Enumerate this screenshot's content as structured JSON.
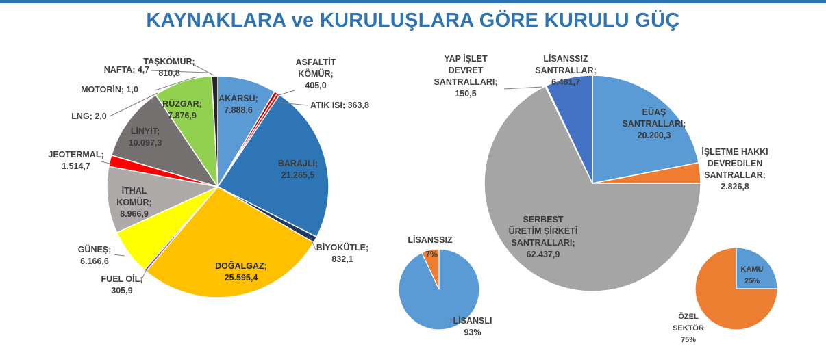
{
  "title": "KAYNAKLARA ve KURULUŞLARA GÖRE KURULU GÜÇ",
  "chart_data": [
    {
      "type": "pie",
      "name": "sources",
      "slices": [
        {
          "label": "AKARSU",
          "value": 7888.6,
          "display": "7.888,6",
          "color": "#5b9bd5"
        },
        {
          "label": "ASFALTİT KÖMÜR",
          "value": 405.0,
          "display": "405,0",
          "color": "#c00000"
        },
        {
          "label": "ATIK ISI",
          "value": 363.8,
          "display": "363,8",
          "color": "#ff0000"
        },
        {
          "label": "BARAJLI",
          "value": 21265.5,
          "display": "21.265,5",
          "color": "#2e75b6"
        },
        {
          "label": "BİYOKÜTLE",
          "value": 832.1,
          "display": "832,1",
          "color": "#1f3864"
        },
        {
          "label": "DOĞALGAZ",
          "value": 25595.4,
          "display": "25.595,4",
          "color": "#ffc000"
        },
        {
          "label": "FUEL OİL",
          "value": 305.9,
          "display": "305,9",
          "color": "#7030a0"
        },
        {
          "label": "GÜNEŞ",
          "value": 6166.6,
          "display": "6.166,6",
          "color": "#ffff00"
        },
        {
          "label": "İTHAL KÖMÜR",
          "value": 8966.9,
          "display": "8.966,9",
          "color": "#aeaaaa"
        },
        {
          "label": "JEOTERMAL",
          "value": 1514.7,
          "display": "1.514,7",
          "color": "#ff0000"
        },
        {
          "label": "LİNYİT",
          "value": 10097.3,
          "display": "10.097,3",
          "color": "#767171"
        },
        {
          "label": "LNG",
          "value": 2.0,
          "display": "2,0",
          "color": "#000000"
        },
        {
          "label": "MOTORİN",
          "value": 1.0,
          "display": "1,0",
          "color": "#000000"
        },
        {
          "label": "NAFTA",
          "value": 4.7,
          "display": "4,7",
          "color": "#000000"
        },
        {
          "label": "RÜZGAR",
          "value": 7876.9,
          "display": "7.876,9",
          "color": "#92d050"
        },
        {
          "label": "TAŞKÖMÜR",
          "value": 810.8,
          "display": "810,8",
          "color": "#262626"
        }
      ]
    },
    {
      "type": "pie",
      "name": "organizations",
      "slices": [
        {
          "label": "EÜAŞ SANTRALLARI",
          "value": 20200.3,
          "display": "20.200,3",
          "color": "#5b9bd5"
        },
        {
          "label": "İŞLETME HAKKI DEVREDİLEN SANTRALLAR",
          "value": 2826.8,
          "display": "2.826,8",
          "color": "#ed7d31"
        },
        {
          "label": "SERBEST ÜRETİM ŞİRKETİ SANTRALLARI",
          "value": 62437.9,
          "display": "62.437,9",
          "color": "#a5a5a5"
        },
        {
          "label": "YAP İŞLET DEVRET SANTRALLARI",
          "value": 150.5,
          "display": "150,5",
          "color": "#ffc000"
        },
        {
          "label": "LİSANSSIZ SANTRALLAR",
          "value": 6481.7,
          "display": "6.481,7",
          "color": "#4472c4"
        }
      ]
    },
    {
      "type": "pie",
      "name": "license",
      "slices": [
        {
          "label": "LİSANSLI",
          "value": 93,
          "display": "93%",
          "color": "#5b9bd5"
        },
        {
          "label": "LİSANSSIZ",
          "value": 7,
          "display": "7%",
          "color": "#ed7d31"
        }
      ]
    },
    {
      "type": "pie",
      "name": "ownership",
      "slices": [
        {
          "label": "KAMU",
          "value": 25,
          "display": "25%",
          "color": "#5b9bd5"
        },
        {
          "label": "ÖZEL SEKTÖR",
          "value": 75,
          "display": "75%",
          "color": "#ed7d31"
        }
      ]
    }
  ]
}
